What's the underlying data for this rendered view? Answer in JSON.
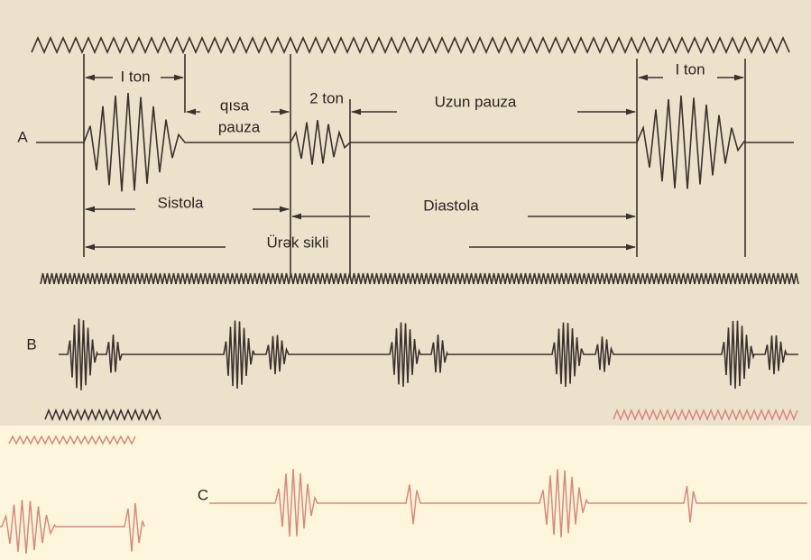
{
  "labels": {
    "trace_a": "A",
    "trace_b": "B",
    "trace_c": "C",
    "first_tone_left": "I ton",
    "short_pause": [
      "qısa",
      "pauza"
    ],
    "second_tone": "2 ton",
    "long_pause": "Uzun pauza",
    "first_tone_right": "I ton",
    "systole": "Sistola",
    "diastole": "Diastola",
    "cardiac_cycle": "Ürək sikli"
  }
}
